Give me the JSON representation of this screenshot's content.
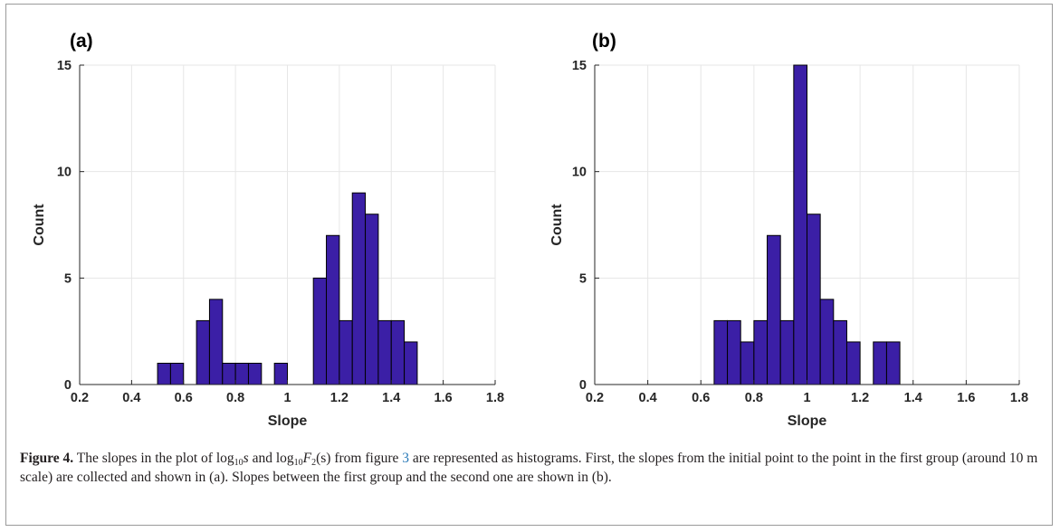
{
  "chart_data": [
    {
      "type": "bar",
      "panel_label": "(a)",
      "xlabel": "Slope",
      "ylabel": "Count",
      "xlim": [
        0.2,
        1.8
      ],
      "ylim": [
        0,
        15
      ],
      "xticks": [
        "0.2",
        "0.4",
        "0.6",
        "0.8",
        "1",
        "1.2",
        "1.4",
        "1.6",
        "1.8"
      ],
      "yticks": [
        "0",
        "5",
        "10",
        "15"
      ],
      "bin_width": 0.05,
      "bins": [
        {
          "x": 0.525,
          "count": 1
        },
        {
          "x": 0.575,
          "count": 1
        },
        {
          "x": 0.675,
          "count": 3
        },
        {
          "x": 0.725,
          "count": 4
        },
        {
          "x": 0.775,
          "count": 1
        },
        {
          "x": 0.825,
          "count": 1
        },
        {
          "x": 0.875,
          "count": 1
        },
        {
          "x": 0.975,
          "count": 1
        },
        {
          "x": 1.125,
          "count": 5
        },
        {
          "x": 1.175,
          "count": 7
        },
        {
          "x": 1.225,
          "count": 3
        },
        {
          "x": 1.275,
          "count": 9
        },
        {
          "x": 1.325,
          "count": 8
        },
        {
          "x": 1.375,
          "count": 3
        },
        {
          "x": 1.425,
          "count": 3
        },
        {
          "x": 1.475,
          "count": 2
        }
      ],
      "grid": true,
      "bar_color": "#3b1fa6"
    },
    {
      "type": "bar",
      "panel_label": "(b)",
      "xlabel": "Slope",
      "ylabel": "Count",
      "xlim": [
        0.2,
        1.8
      ],
      "ylim": [
        0,
        15
      ],
      "xticks": [
        "0.2",
        "0.4",
        "0.6",
        "0.8",
        "1",
        "1.2",
        "1.4",
        "1.6",
        "1.8"
      ],
      "yticks": [
        "0",
        "5",
        "10",
        "15"
      ],
      "bin_width": 0.05,
      "bins": [
        {
          "x": 0.675,
          "count": 3
        },
        {
          "x": 0.725,
          "count": 3
        },
        {
          "x": 0.775,
          "count": 2
        },
        {
          "x": 0.825,
          "count": 3
        },
        {
          "x": 0.875,
          "count": 7
        },
        {
          "x": 0.925,
          "count": 3
        },
        {
          "x": 0.975,
          "count": 15
        },
        {
          "x": 1.025,
          "count": 8
        },
        {
          "x": 1.075,
          "count": 4
        },
        {
          "x": 1.125,
          "count": 3
        },
        {
          "x": 1.175,
          "count": 2
        },
        {
          "x": 1.275,
          "count": 2
        },
        {
          "x": 1.325,
          "count": 2
        }
      ],
      "grid": true,
      "bar_color": "#3b1fa6"
    }
  ],
  "caption": {
    "label": "Figure 4.",
    "text_1": " The slopes in the plot of log",
    "sub_1": "10",
    "var_s": "s",
    "text_2": " and log",
    "sub_2": "10",
    "var_F": "F",
    "sub_3": "2",
    "text_3": "(s)",
    "text_4": " from figure ",
    "ref": "3",
    "text_5": " are represented as histograms. First, the slopes from the initial point to the point in the first group (around 10 m scale) are collected and shown in (a). Slopes between the first group and the second one are shown in (b)."
  },
  "colors": {
    "bar_fill": "#3b1fa6",
    "bar_edge": "#000000",
    "grid": "#e6e6e6",
    "axis": "#262626",
    "ref_link": "#2a7ab8"
  }
}
